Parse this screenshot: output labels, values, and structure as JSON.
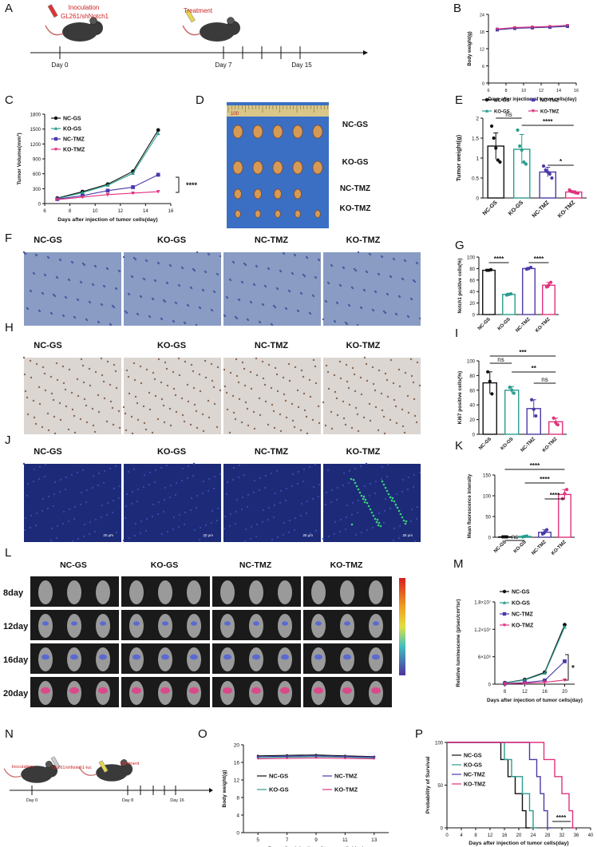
{
  "colors": {
    "ncgs": "#111111",
    "kogs": "#2a9d8f",
    "nctmz": "#4b3aa8",
    "kotmz": "#e0327e"
  },
  "panel_letters": [
    "A",
    "B",
    "C",
    "D",
    "E",
    "F",
    "G",
    "H",
    "I",
    "J",
    "K",
    "L",
    "M",
    "N",
    "O",
    "P"
  ],
  "panelA": {
    "label1": "Inoculation",
    "label2": "GL261/shNotch1",
    "label3": "Treatment",
    "days": [
      "Day 0",
      "Day 7",
      "Day 15"
    ]
  },
  "panelN": {
    "label1": "Inoculation",
    "label2": "GL261/shNotch1-luc",
    "label3": "Treatment",
    "days": [
      "Day 0",
      "Day 8",
      "Day 16"
    ]
  },
  "groups": [
    "NC-GS",
    "KO-GS",
    "NC-TMZ",
    "KO-TMZ"
  ],
  "panelD": {
    "ruler": "100",
    "labels": [
      "NC-GS",
      "KO-GS",
      "NC-TMZ",
      "KO-TMZ"
    ]
  },
  "panelF": {
    "labels": [
      "NC-GS",
      "KO-GS",
      "NC-TMZ",
      "KO-TMZ"
    ]
  },
  "panelH": {
    "labels": [
      "NC-GS",
      "KO-GS",
      "NC-TMZ",
      "KO-TMZ"
    ]
  },
  "panelJ": {
    "labels": [
      "NC-GS",
      "KO-GS",
      "NC-TMZ",
      "KO-TMZ"
    ],
    "scale": "20 μm"
  },
  "panelL": {
    "groups": [
      "NC-GS",
      "KO-GS",
      "NC-TMZ",
      "KO-TMZ"
    ],
    "days": [
      "8day",
      "12day",
      "16day",
      "20day"
    ]
  },
  "chart_data": [
    {
      "id": "B",
      "type": "line",
      "xlabel": "Days after injection of tumor cells(day)",
      "ylabel": "Body weight(g)",
      "xlim": [
        6,
        16
      ],
      "xticks": [
        6,
        8,
        10,
        12,
        14,
        16
      ],
      "ylim": [
        0,
        24
      ],
      "yticks": [
        0,
        6,
        12,
        18,
        24
      ],
      "x": [
        7,
        9,
        11,
        13,
        15
      ],
      "series": [
        {
          "name": "NC-GS",
          "values": [
            18.8,
            19.3,
            19.5,
            19.7,
            20.0
          ]
        },
        {
          "name": "KO-GS",
          "values": [
            18.7,
            19.2,
            19.4,
            19.6,
            19.9
          ]
        },
        {
          "name": "NC-TMZ",
          "values": [
            18.6,
            19.1,
            19.3,
            19.5,
            19.8
          ]
        },
        {
          "name": "KO-TMZ",
          "values": [
            18.9,
            19.4,
            19.6,
            19.8,
            20.2
          ]
        }
      ]
    },
    {
      "id": "C",
      "type": "line",
      "xlabel": "Days after injection of tumor cells(day)",
      "ylabel": "Tumor Volume(mm³)",
      "xlim": [
        6,
        16
      ],
      "xticks": [
        6,
        8,
        10,
        12,
        14,
        16
      ],
      "ylim": [
        0,
        1800
      ],
      "yticks": [
        0,
        300,
        600,
        900,
        1200,
        1500,
        1800
      ],
      "x": [
        7,
        9,
        11,
        13,
        15
      ],
      "sig": "****",
      "series": [
        {
          "name": "NC-GS",
          "values": [
            110,
            240,
            390,
            650,
            1480
          ]
        },
        {
          "name": "KO-GS",
          "values": [
            100,
            220,
            370,
            610,
            1410
          ]
        },
        {
          "name": "NC-TMZ",
          "values": [
            90,
            160,
            260,
            330,
            580
          ]
        },
        {
          "name": "KO-TMZ",
          "values": [
            80,
            130,
            180,
            210,
            240
          ]
        }
      ]
    },
    {
      "id": "E",
      "type": "bar",
      "ylabel": "Tumor weight(g)",
      "ylim": [
        0,
        2.0
      ],
      "yticks": [
        0,
        0.5,
        1.0,
        1.5,
        2.0
      ],
      "categories": [
        "NC-GS",
        "KO-GS",
        "NC-TMZ",
        "KO-TMZ"
      ],
      "values": [
        1.3,
        1.22,
        0.65,
        0.15
      ],
      "errors": [
        0.33,
        0.37,
        0.12,
        0.03
      ],
      "points": [
        [
          1.8,
          1.5,
          1.25,
          0.95,
          0.9
        ],
        [
          1.7,
          1.3,
          1.2,
          0.9,
          0.85
        ],
        [
          0.8,
          0.7,
          0.65,
          0.6,
          0.5
        ],
        [
          0.2,
          0.16,
          0.15,
          0.13,
          0.12
        ]
      ],
      "sig": [
        [
          "ns",
          0,
          1
        ],
        [
          "****",
          1,
          3
        ],
        [
          "*",
          2,
          3
        ]
      ]
    },
    {
      "id": "G",
      "type": "bar",
      "ylabel": "Notch1 positive cells(%)",
      "ylim": [
        0,
        100
      ],
      "yticks": [
        0,
        20,
        40,
        60,
        80,
        100
      ],
      "categories": [
        "NC-GS",
        "KO-GS",
        "NC-TMZ",
        "KO-TMZ"
      ],
      "values": [
        77,
        35,
        80,
        51
      ],
      "errors": [
        1,
        2,
        2,
        5
      ],
      "points": [
        [
          77,
          77,
          78
        ],
        [
          34,
          35,
          36
        ],
        [
          79,
          80,
          82
        ],
        [
          48,
          51,
          56
        ]
      ],
      "sig": [
        [
          "****",
          0,
          1
        ],
        [
          "****",
          2,
          3
        ]
      ]
    },
    {
      "id": "I",
      "type": "bar",
      "ylabel": "Ki67 positive cells(%)",
      "ylim": [
        0,
        100
      ],
      "yticks": [
        0,
        20,
        40,
        60,
        80,
        100
      ],
      "categories": [
        "NC-GS",
        "KO-GS",
        "NC-TMZ",
        "KO-TMZ"
      ],
      "values": [
        70,
        60,
        35,
        17
      ],
      "errors": [
        15,
        5,
        12,
        5
      ],
      "points": [
        [
          85,
          72,
          55
        ],
        [
          64,
          60,
          56
        ],
        [
          47,
          34,
          25
        ],
        [
          22,
          16,
          13
        ]
      ],
      "sig": [
        [
          "ns",
          0,
          1
        ],
        [
          "***",
          0,
          3
        ],
        [
          "**",
          1,
          3
        ],
        [
          "ns",
          2,
          3
        ]
      ]
    },
    {
      "id": "K",
      "type": "bar",
      "ylabel": "Mean fluorescence intensity",
      "ylim": [
        0,
        150
      ],
      "yticks": [
        0,
        50,
        100,
        150
      ],
      "categories": [
        "NC-GS",
        "KO-GS",
        "NC-TMZ",
        "KO-TMZ"
      ],
      "values": [
        1,
        2,
        12,
        103
      ],
      "errors": [
        0.5,
        1,
        6,
        12
      ],
      "points": [
        [
          1,
          1,
          1
        ],
        [
          1,
          2,
          3
        ],
        [
          8,
          12,
          18
        ],
        [
          93,
          105,
          115
        ]
      ],
      "sig": [
        [
          "ns",
          0,
          1
        ],
        [
          "****",
          0,
          3
        ],
        [
          "****",
          1,
          3
        ],
        [
          "****",
          2,
          3
        ]
      ]
    },
    {
      "id": "M",
      "type": "line",
      "xlabel": "Days after injection of tumor cells(day)",
      "ylabel": "Relative luminescene (p/sec/cm²/sr)",
      "xlim": [
        6,
        22
      ],
      "xticks": [
        8,
        12,
        16,
        20
      ],
      "ylim": [
        0,
        18000000
      ],
      "ytick_values": [
        0,
        6000000,
        12000000,
        18000000
      ],
      "ytick_labels": [
        "0",
        "6×10⁶",
        "1.2×10⁷",
        "1.8×10⁷"
      ],
      "x": [
        8,
        12,
        16,
        20
      ],
      "sig": "*",
      "series": [
        {
          "name": "NC-GS",
          "values": [
            300000,
            1000000,
            2600000,
            13000000
          ]
        },
        {
          "name": "KO-GS",
          "values": [
            250000,
            900000,
            2400000,
            12500000
          ]
        },
        {
          "name": "NC-TMZ",
          "values": [
            150000,
            350000,
            800000,
            5000000
          ]
        },
        {
          "name": "KO-TMZ",
          "values": [
            100000,
            200000,
            400000,
            900000
          ]
        }
      ]
    },
    {
      "id": "O",
      "type": "line",
      "xlabel": "Days after injection of tumor cells(day)",
      "ylabel": "Body weight(g)",
      "xlim": [
        4,
        14
      ],
      "xticks": [
        5,
        7,
        9,
        11,
        13
      ],
      "ylim": [
        0,
        20
      ],
      "yticks": [
        0,
        4,
        8,
        12,
        16,
        20
      ],
      "x": [
        5,
        7,
        9,
        11,
        13
      ],
      "series": [
        {
          "name": "NC-GS",
          "values": [
            17.5,
            17.6,
            17.7,
            17.5,
            17.3
          ]
        },
        {
          "name": "KO-GS",
          "values": [
            17.1,
            17.2,
            17.3,
            17.2,
            17.0
          ]
        },
        {
          "name": "NC-TMZ",
          "values": [
            17.3,
            17.4,
            17.5,
            17.3,
            17.2
          ]
        },
        {
          "name": "KO-TMZ",
          "values": [
            16.8,
            16.9,
            17.0,
            16.9,
            16.8
          ]
        }
      ]
    },
    {
      "id": "P",
      "type": "line",
      "xlabel": "Days after injection of tumor cells(day)",
      "ylabel": "Probability of Survival",
      "xlim": [
        0,
        40
      ],
      "xticks": [
        0,
        4,
        8,
        12,
        16,
        20,
        24,
        28,
        32,
        36,
        40
      ],
      "ylim": [
        0,
        100
      ],
      "yticks": [
        0,
        50,
        100
      ],
      "sig": "****",
      "series": [
        {
          "name": "NC-GS",
          "steps": [
            [
              0,
              100
            ],
            [
              15,
              100
            ],
            [
              15,
              80
            ],
            [
              17,
              80
            ],
            [
              17,
              60
            ],
            [
              19,
              60
            ],
            [
              19,
              40
            ],
            [
              21,
              40
            ],
            [
              21,
              20
            ],
            [
              22,
              20
            ],
            [
              22,
              0
            ],
            [
              23,
              0
            ]
          ]
        },
        {
          "name": "KO-GS",
          "steps": [
            [
              0,
              100
            ],
            [
              16,
              100
            ],
            [
              16,
              80
            ],
            [
              18,
              80
            ],
            [
              18,
              60
            ],
            [
              21,
              60
            ],
            [
              21,
              40
            ],
            [
              23,
              40
            ],
            [
              23,
              20
            ],
            [
              24,
              20
            ],
            [
              24,
              0
            ],
            [
              25,
              0
            ]
          ]
        },
        {
          "name": "NC-TMZ",
          "steps": [
            [
              0,
              100
            ],
            [
              23,
              100
            ],
            [
              23,
              80
            ],
            [
              25,
              80
            ],
            [
              25,
              60
            ],
            [
              26,
              60
            ],
            [
              26,
              40
            ],
            [
              27,
              40
            ],
            [
              27,
              20
            ],
            [
              28,
              20
            ],
            [
              28,
              0
            ],
            [
              29,
              0
            ]
          ]
        },
        {
          "name": "KO-TMZ",
          "steps": [
            [
              0,
              100
            ],
            [
              27,
              100
            ],
            [
              27,
              80
            ],
            [
              30,
              80
            ],
            [
              30,
              60
            ],
            [
              32,
              60
            ],
            [
              32,
              40
            ],
            [
              34,
              40
            ],
            [
              34,
              20
            ],
            [
              35,
              20
            ],
            [
              35,
              0
            ],
            [
              36,
              0
            ]
          ]
        }
      ]
    }
  ]
}
